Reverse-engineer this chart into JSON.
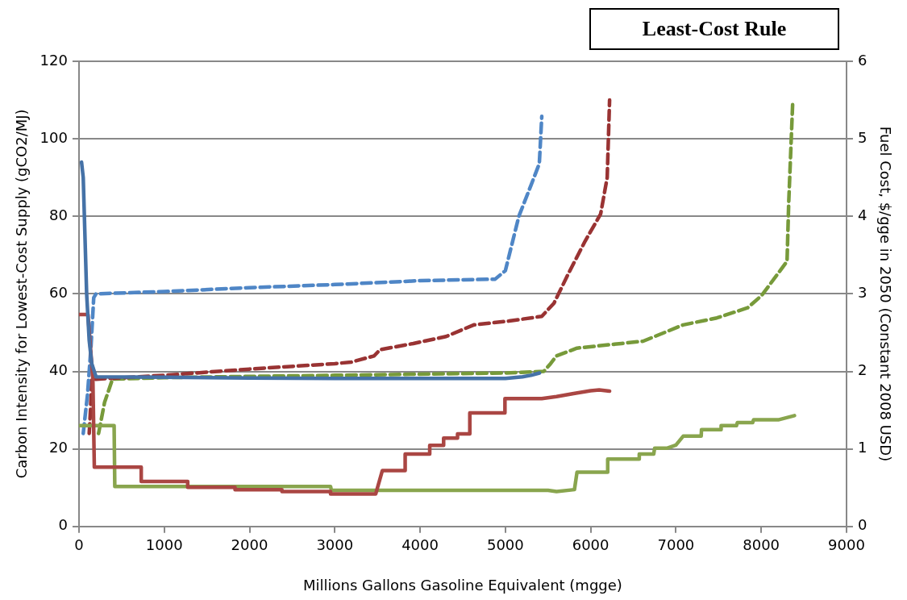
{
  "chart_data": {
    "type": "line",
    "title": "Least-Cost Rule",
    "xlabel": "Millions Gallons Gasoline Equivalent (mgge)",
    "ylabel": "Carbon Intensity for Lowest-Cost Supply (gCO2/MJ)",
    "y2label": "Fuel Cost, $/gge in 2050 (Constant 2008 USD)",
    "xlim": [
      0,
      9000
    ],
    "xticks": [
      0,
      1000,
      2000,
      3000,
      4000,
      5000,
      6000,
      7000,
      8000,
      9000
    ],
    "ylim": [
      0,
      120
    ],
    "yticks": [
      0,
      20,
      40,
      60,
      80,
      100,
      120
    ],
    "y2lim": [
      0,
      6
    ],
    "y2ticks": [
      0,
      1,
      2,
      3,
      4,
      5,
      6
    ],
    "grid": "y",
    "legend": false,
    "marker": "none",
    "series": [
      {
        "color": "#4572a7",
        "line_style": "solid",
        "x": [
          30,
          50,
          70,
          90,
          120,
          150,
          200,
          1000,
          2000,
          3000,
          4000,
          5000,
          5200,
          5300,
          5400
        ],
        "values": [
          94,
          90,
          75,
          60,
          48,
          42,
          38.6,
          38.5,
          38.3,
          38.2,
          38.2,
          38.2,
          38.6,
          39,
          39.6
        ]
      },
      {
        "color": "#aa4643",
        "line_style": "solid",
        "x": [
          0,
          105,
          163,
          180,
          730,
          730,
          1275,
          1275,
          1830,
          1830,
          2380,
          2380,
          2950,
          2950,
          3480,
          3557,
          3825,
          3825,
          4113,
          4113,
          4276,
          4276,
          4439,
          4439,
          4583,
          4583,
          4995,
          4995,
          5427,
          5600,
          5800,
          6000,
          6100,
          6222
        ],
        "values": [
          54.7,
          54.7,
          38,
          15.3,
          15.3,
          11.6,
          11.6,
          10.1,
          10.1,
          9.5,
          9.5,
          9,
          9,
          8.4,
          8.4,
          14.4,
          14.4,
          18.7,
          18.7,
          20.9,
          20.9,
          22.8,
          22.8,
          23.9,
          23.9,
          29.3,
          29.3,
          33,
          33,
          33.5,
          34.3,
          35,
          35.2,
          34.9
        ]
      },
      {
        "color": "#89a54e",
        "line_style": "solid",
        "x": [
          0,
          412,
          420,
          2950,
          2960,
          5500,
          5600,
          5810,
          5840,
          6194,
          6200,
          6567,
          6570,
          6740,
          6750,
          6900,
          7000,
          7085,
          7296,
          7300,
          7526,
          7530,
          7710,
          7720,
          7900,
          7910,
          8200,
          8390
        ],
        "values": [
          26,
          26,
          10.3,
          10.3,
          9.3,
          9.3,
          9,
          9.5,
          14,
          14,
          17.4,
          17.4,
          18.7,
          18.7,
          20.2,
          20.2,
          21,
          23.3,
          23.3,
          25,
          25,
          26,
          26,
          26.8,
          26.8,
          27.5,
          27.5,
          28.6
        ]
      },
      {
        "color": "#4f86c6",
        "line_style": "dashed",
        "axis": "y2",
        "x": [
          50,
          100,
          140,
          173,
          200,
          1000,
          2000,
          3000,
          4000,
          4880,
          5000,
          5158,
          5300,
          5398,
          5427
        ],
        "values": [
          1.2,
          1.7,
          2.3,
          2.95,
          3,
          3.03,
          3.08,
          3.12,
          3.17,
          3.19,
          3.3,
          4,
          4.4,
          4.68,
          5.29
        ]
      },
      {
        "color": "#993333",
        "line_style": "dashed",
        "axis": "y2",
        "x": [
          120,
          135,
          150,
          200,
          1000,
          2000,
          3000,
          3193,
          3461,
          3530,
          3920,
          4305,
          4630,
          5043,
          5427,
          5570,
          5743,
          5935,
          6117,
          6194,
          6222
        ],
        "values": [
          1.2,
          1.5,
          1.9,
          1.9,
          1.95,
          2.03,
          2.1,
          2.12,
          2.2,
          2.28,
          2.36,
          2.45,
          2.6,
          2.65,
          2.71,
          2.88,
          3.27,
          3.68,
          4.03,
          4.5,
          5.5
        ]
      },
      {
        "color": "#779a3a",
        "line_style": "dashed",
        "axis": "y2",
        "x": [
          230,
          300,
          393,
          1000,
          3000,
          5000,
          5450,
          5530,
          5600,
          5840,
          6360,
          6617,
          7085,
          7480,
          7840,
          8006,
          8303,
          8322,
          8370
        ],
        "values": [
          1.2,
          1.6,
          1.9,
          1.92,
          1.95,
          1.98,
          2,
          2.1,
          2.2,
          2.3,
          2.36,
          2.39,
          2.6,
          2.69,
          2.82,
          2.98,
          3.42,
          4.16,
          5.49
        ]
      }
    ]
  }
}
